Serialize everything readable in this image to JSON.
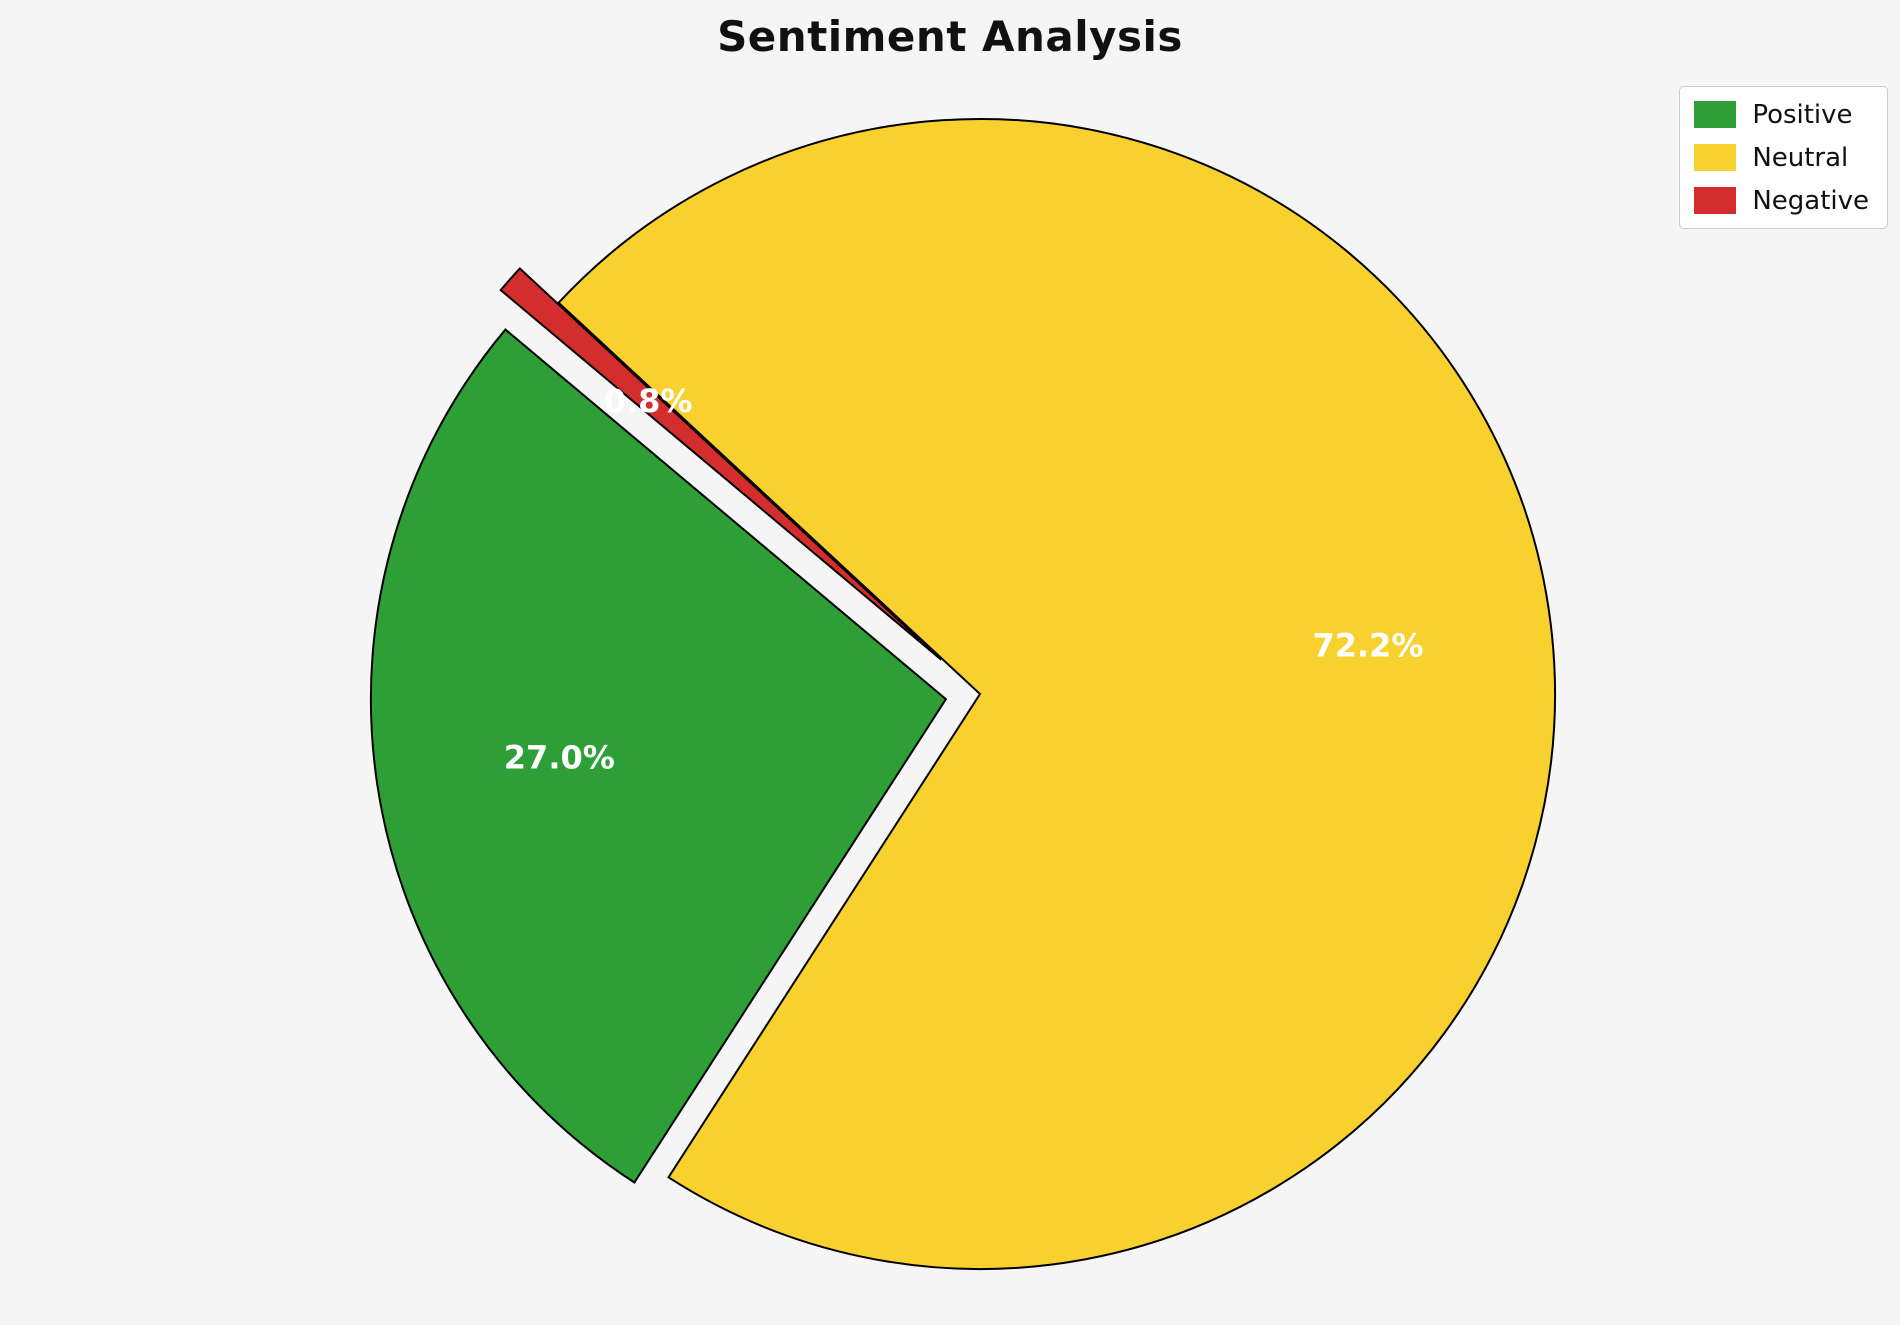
{
  "page": {
    "background": "#f5f5f5"
  },
  "chart_data": {
    "type": "pie",
    "title": "Sentiment Analysis",
    "slices": [
      {
        "label": "Positive",
        "value": 27.0,
        "pct_label": "27.0%",
        "color": "#2e9e36",
        "explode": 0.06
      },
      {
        "label": "Neutral",
        "value": 72.2,
        "pct_label": "72.2%",
        "color": "#f9d12e",
        "explode": 0.0
      },
      {
        "label": "Negative",
        "value": 0.8,
        "pct_label": "0.8%",
        "color": "#d42d2d",
        "explode": 0.09
      }
    ],
    "start_angle_deg": 140,
    "direction": "counterclockwise",
    "pct_distance": 0.68,
    "pct_label_color": "#ffffff",
    "edge_color": "#000000",
    "legend": {
      "position": "upper-right"
    }
  }
}
